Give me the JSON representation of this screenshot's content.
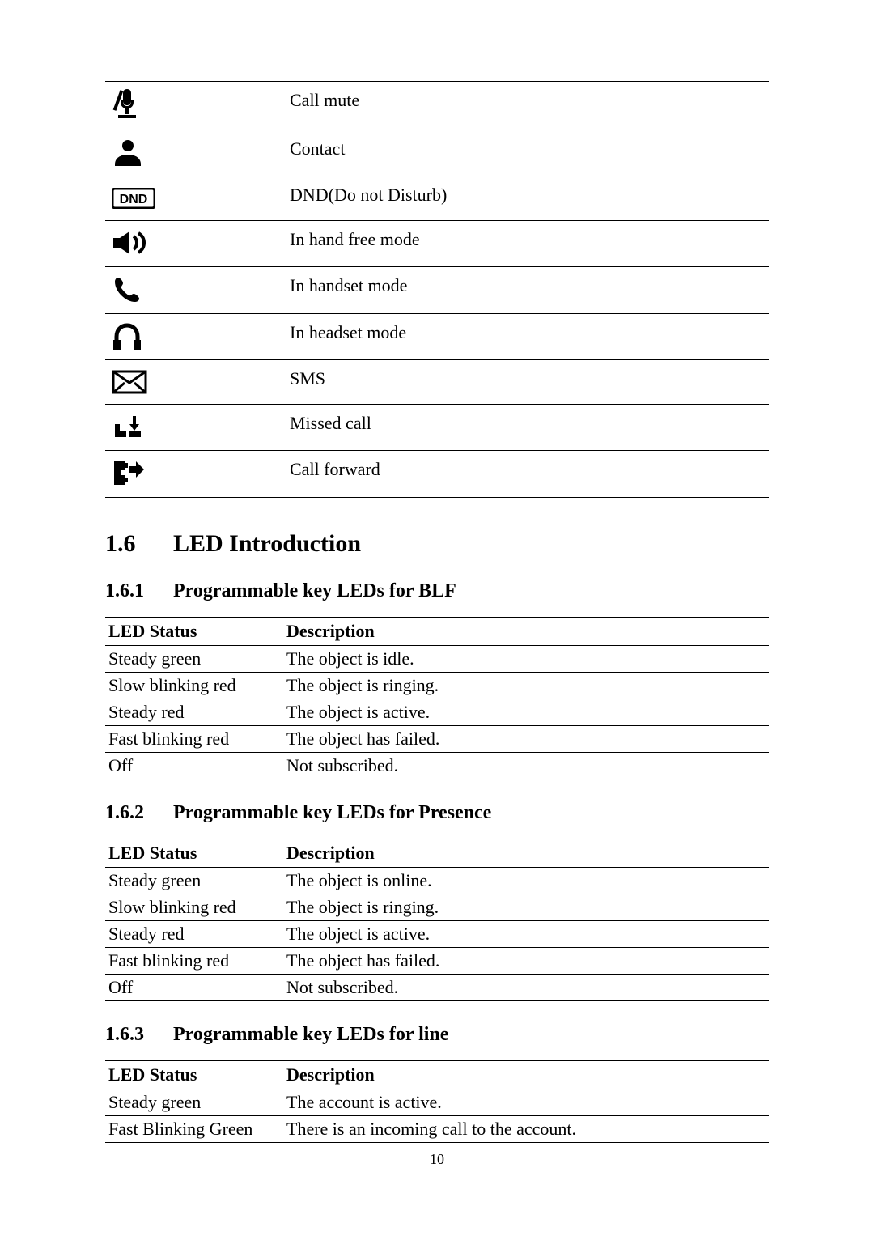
{
  "icon_rows": [
    {
      "icon": "mute",
      "label": "Call mute"
    },
    {
      "icon": "contact",
      "label": "Contact"
    },
    {
      "icon": "dnd",
      "label": "DND(Do not Disturb)"
    },
    {
      "icon": "speaker",
      "label": "In hand free mode"
    },
    {
      "icon": "handset",
      "label": "In handset mode"
    },
    {
      "icon": "headset",
      "label": "In headset mode"
    },
    {
      "icon": "sms",
      "label": "SMS"
    },
    {
      "icon": "missed",
      "label": "Missed call"
    },
    {
      "icon": "forward",
      "label": "Call forward"
    }
  ],
  "section_1_6": {
    "num": "1.6",
    "title": "LED Introduction"
  },
  "sub_1_6_1": {
    "num": "1.6.1",
    "title": "Programmable key LEDs for BLF",
    "header": {
      "c1": "LED Status",
      "c2": "Description"
    },
    "rows": [
      {
        "c1": "Steady green",
        "c2": "The object is idle."
      },
      {
        "c1": "Slow blinking red",
        "c2": "The object is ringing."
      },
      {
        "c1": "Steady red",
        "c2": "The object is active."
      },
      {
        "c1": "Fast blinking red",
        "c2": "The object has failed."
      },
      {
        "c1": "Off",
        "c2": "Not subscribed."
      }
    ]
  },
  "sub_1_6_2": {
    "num": "1.6.2",
    "title": "Programmable key LEDs for Presence",
    "header": {
      "c1": "LED Status",
      "c2": "Description"
    },
    "rows": [
      {
        "c1": "Steady green",
        "c2": "The object is online."
      },
      {
        "c1": "Slow blinking red",
        "c2": "The object is ringing."
      },
      {
        "c1": "Steady red",
        "c2": "The object is active."
      },
      {
        "c1": "Fast blinking red",
        "c2": "The object has failed."
      },
      {
        "c1": "Off",
        "c2": "Not subscribed."
      }
    ]
  },
  "sub_1_6_3": {
    "num": "1.6.3",
    "title": "Programmable key LEDs for line",
    "header": {
      "c1": "LED Status",
      "c2": "Description"
    },
    "rows": [
      {
        "c1": "Steady green",
        "c2": "The account is active."
      },
      {
        "c1": "Fast Blinking Green",
        "c2": "There is an incoming call to the account."
      }
    ]
  },
  "page_number": "10",
  "colors": {
    "text": "#000000",
    "bg": "#ffffff",
    "rule": "#000000"
  },
  "fonts": {
    "body_pt": 22,
    "h2_pt": 30,
    "h3_pt": 24
  }
}
